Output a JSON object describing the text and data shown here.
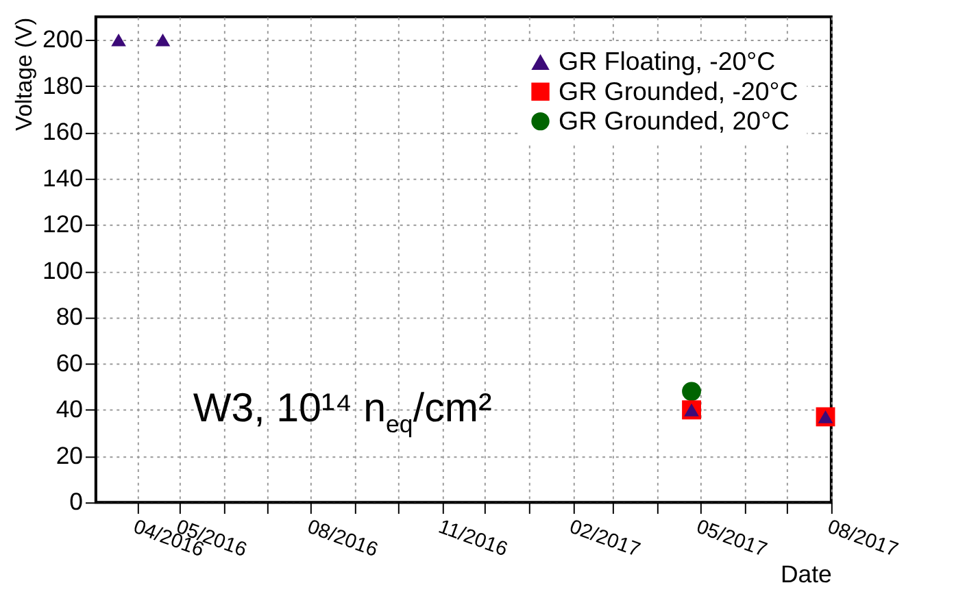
{
  "chart_data": {
    "type": "scatter",
    "xlabel": "Date",
    "ylabel": "Voltage (V)",
    "xlim": [
      "2016-03-03",
      "2017-08-01"
    ],
    "ylim": [
      0,
      210
    ],
    "xticks": [
      {
        "value": "2016-04",
        "label": "04/2016"
      },
      {
        "value": "2016-05",
        "label": "05/2016"
      },
      {
        "value": "2016-06",
        "label": null
      },
      {
        "value": "2016-07",
        "label": null
      },
      {
        "value": "2016-08",
        "label": "08/2016"
      },
      {
        "value": "2016-09",
        "label": null
      },
      {
        "value": "2016-10",
        "label": null
      },
      {
        "value": "2016-11",
        "label": "11/2016"
      },
      {
        "value": "2016-12",
        "label": null
      },
      {
        "value": "2017-01",
        "label": null
      },
      {
        "value": "2017-02",
        "label": "02/2017"
      },
      {
        "value": "2017-03",
        "label": null
      },
      {
        "value": "2017-04",
        "label": null
      },
      {
        "value": "2017-05",
        "label": "05/2017"
      },
      {
        "value": "2017-06",
        "label": null
      },
      {
        "value": "2017-07",
        "label": null
      },
      {
        "value": "2017-08",
        "label": "08/2017"
      }
    ],
    "yticks": [
      0,
      20,
      40,
      60,
      80,
      100,
      120,
      140,
      160,
      180,
      200
    ],
    "grid": true,
    "legend": "top right",
    "series": [
      {
        "name": "GR Floating, -20°C",
        "color": "#3c0a78",
        "marker": "triangle",
        "x": [
          "2016-03-19",
          "2016-04-19",
          "2017-04-25",
          "2017-07-28"
        ],
        "values": [
          200,
          200,
          40,
          37
        ]
      },
      {
        "name": "GR Grounded, -20°C",
        "color": "#ff0000",
        "marker": "square",
        "x": [
          "2017-04-25",
          "2017-07-28"
        ],
        "values": [
          40,
          37
        ]
      },
      {
        "name": "GR Grounded, 20°C",
        "color": "#006400",
        "marker": "circle",
        "x": [
          "2017-04-25"
        ],
        "values": [
          48
        ]
      }
    ],
    "annotations": [
      "W3, 10¹⁴ n$_{eq}$/cm²"
    ]
  }
}
